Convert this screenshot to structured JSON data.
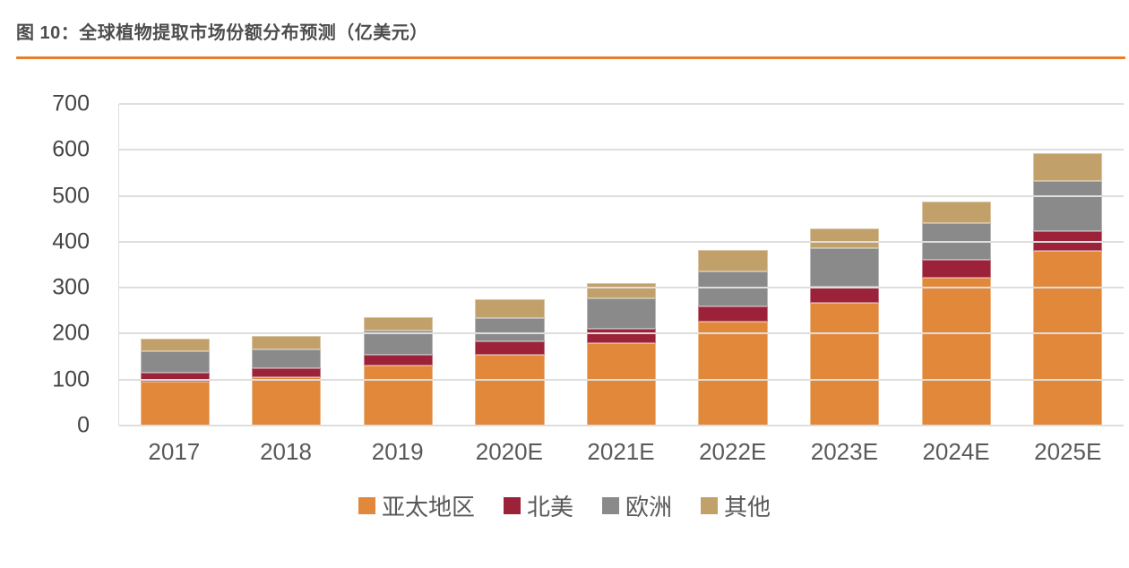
{
  "figure": {
    "title": "图 10：全球植物提取市场份额分布预测（亿美元）"
  },
  "chart_data": {
    "type": "bar",
    "stacked": true,
    "title": "全球植物提取市场份额分布预测",
    "unit": "亿美元",
    "categories": [
      "2017",
      "2018",
      "2019",
      "2020E",
      "2021E",
      "2022E",
      "2023E",
      "2024E",
      "2025E"
    ],
    "series": [
      {
        "key": "asia-pacific",
        "name": "亚太地区",
        "color": "#e1883b",
        "values": [
          95,
          105,
          130,
          154,
          180,
          226,
          268,
          322,
          380
        ]
      },
      {
        "key": "north-america",
        "name": "北美",
        "color": "#9b2239",
        "values": [
          21,
          20,
          25,
          29,
          31,
          34,
          34,
          38,
          44
        ]
      },
      {
        "key": "europe",
        "name": "欧洲",
        "color": "#8a8a8a",
        "values": [
          46,
          40,
          52,
          52,
          66,
          76,
          84,
          81,
          108
        ]
      },
      {
        "key": "other",
        "name": "其他",
        "color": "#c1a169",
        "values": [
          28,
          31,
          30,
          41,
          34,
          46,
          43,
          47,
          60
        ]
      }
    ],
    "totals": [
      190,
      196,
      237,
      276,
      311,
      382,
      429,
      488,
      592
    ],
    "ylim": [
      0,
      700
    ],
    "yticks": [
      0,
      100,
      200,
      300,
      400,
      500,
      600,
      700
    ],
    "grid": "horizontal",
    "legend_position": "bottom"
  },
  "colors": {
    "title_text": "#4d4d4d",
    "title_rule": "#e87e2b",
    "gridline": "#dedede",
    "y_axis_text": "#444444",
    "x_axis_text": "#595959"
  }
}
